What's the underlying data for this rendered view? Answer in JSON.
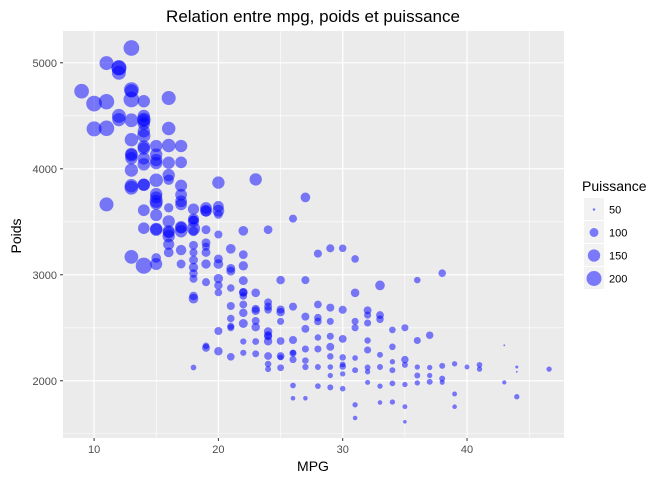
{
  "chart_data": {
    "type": "scatter",
    "title": "Relation entre mpg, poids et puissance",
    "xlabel": "MPG",
    "ylabel": "Poids",
    "xlim": [
      7.5,
      47.8
    ],
    "ylim": [
      1460,
      5300
    ],
    "x_ticks": [
      10,
      20,
      30,
      40
    ],
    "y_ticks": [
      2000,
      3000,
      4000,
      5000
    ],
    "grid": true,
    "point_color": "#0000FF",
    "point_opacity": 0.5,
    "panel_background": "#EBEBEB",
    "legend": {
      "title": "Puissance",
      "placement": "right",
      "entries": [
        {
          "label": "50",
          "value": 50
        },
        {
          "label": "100",
          "value": 100
        },
        {
          "label": "150",
          "value": 150
        },
        {
          "label": "200",
          "value": 200
        }
      ]
    },
    "points": [
      [
        9,
        4732,
        193
      ],
      [
        10,
        4615,
        215
      ],
      [
        10,
        4376,
        200
      ],
      [
        11,
        4997,
        180
      ],
      [
        11,
        4382,
        210
      ],
      [
        11,
        3664,
        180
      ],
      [
        11,
        4633,
        208
      ],
      [
        12,
        4955,
        198
      ],
      [
        12,
        4464,
        167
      ],
      [
        12,
        4951,
        198
      ],
      [
        12,
        4499,
        180
      ],
      [
        12,
        4906,
        180
      ],
      [
        13,
        3821,
        175
      ],
      [
        13,
        4100,
        150
      ],
      [
        13,
        4274,
        170
      ],
      [
        13,
        3169,
        175
      ],
      [
        13,
        5140,
        215
      ],
      [
        13,
        4735,
        165
      ],
      [
        13,
        4654,
        215
      ],
      [
        13,
        3840,
        170
      ],
      [
        13,
        4746,
        198
      ],
      [
        13,
        3988,
        165
      ],
      [
        13,
        4140,
        150
      ],
      [
        13,
        4457,
        175
      ],
      [
        13,
        4129,
        158
      ],
      [
        14,
        4354,
        150
      ],
      [
        14,
        3086,
        225
      ],
      [
        14,
        4209,
        153
      ],
      [
        14,
        4464,
        175
      ],
      [
        14,
        3850,
        150
      ],
      [
        14,
        4312,
        165
      ],
      [
        14,
        4425,
        150
      ],
      [
        14,
        4042,
        153
      ],
      [
        14,
        4098,
        150
      ],
      [
        14,
        3609,
        140
      ],
      [
        14,
        4456,
        150
      ],
      [
        14,
        3439,
        137
      ],
      [
        14,
        4638,
        150
      ],
      [
        14,
        4190,
        150
      ],
      [
        14,
        3850,
        148
      ],
      [
        14,
        4499,
        150
      ],
      [
        15,
        3693,
        165
      ],
      [
        15,
        3433,
        150
      ],
      [
        15,
        3761,
        150
      ],
      [
        15,
        4082,
        150
      ],
      [
        15,
        3892,
        170
      ],
      [
        15,
        4215,
        150
      ],
      [
        15,
        3730,
        145
      ],
      [
        15,
        3425,
        150
      ],
      [
        15,
        3563,
        145
      ],
      [
        15,
        3672,
        150
      ],
      [
        15,
        4135,
        150
      ],
      [
        15,
        3158,
        110
      ],
      [
        15,
        3102,
        145
      ],
      [
        15,
        4054,
        150
      ],
      [
        16,
        3504,
        150
      ],
      [
        16,
        4380,
        170
      ],
      [
        16,
        3410,
        150
      ],
      [
        16,
        3940,
        150
      ],
      [
        16,
        3399,
        140
      ],
      [
        16,
        4057,
        150
      ],
      [
        16,
        3365,
        150
      ],
      [
        16,
        3897,
        120
      ],
      [
        16,
        3288,
        130
      ],
      [
        16,
        4220,
        170
      ],
      [
        16,
        4668,
        180
      ],
      [
        16,
        3211,
        110
      ],
      [
        16,
        3632,
        105
      ],
      [
        17,
        3449,
        150
      ],
      [
        17,
        3693,
        140
      ],
      [
        17,
        3755,
        140
      ],
      [
        17,
        3445,
        130
      ],
      [
        17,
        4060,
        140
      ],
      [
        17,
        3410,
        150
      ],
      [
        17,
        3664,
        140
      ],
      [
        17,
        3102,
        100
      ],
      [
        17,
        3840,
        145
      ],
      [
        17,
        4215,
        150
      ],
      [
        17,
        3233,
        120
      ],
      [
        18,
        3504,
        130
      ],
      [
        18,
        3436,
        165
      ],
      [
        18,
        3012,
        95
      ],
      [
        18,
        2774,
        110
      ],
      [
        18,
        3139,
        100
      ],
      [
        18,
        3278,
        100
      ],
      [
        18,
        3070,
        105
      ],
      [
        18,
        2962,
        90
      ],
      [
        18,
        3210,
        90
      ],
      [
        18,
        3410,
        110
      ],
      [
        18,
        3620,
        130
      ],
      [
        18,
        2800,
        95
      ],
      [
        18,
        3520,
        100
      ],
      [
        18,
        3525,
        130
      ],
      [
        18,
        2125,
        68
      ],
      [
        19,
        3211,
        100
      ],
      [
        19,
        3302,
        100
      ],
      [
        19,
        3102,
        105
      ],
      [
        19,
        3265,
        90
      ],
      [
        19,
        3630,
        140
      ],
      [
        19,
        3425,
        100
      ],
      [
        19,
        2310,
        88
      ],
      [
        19,
        2930,
        90
      ],
      [
        19,
        3605,
        140
      ],
      [
        19,
        2330,
        75
      ],
      [
        19,
        3600,
        125
      ],
      [
        20,
        3150,
        100
      ],
      [
        20,
        3380,
        90
      ],
      [
        20,
        2965,
        105
      ],
      [
        20,
        3570,
        100
      ],
      [
        20,
        3102,
        110
      ],
      [
        20,
        2900,
        95
      ],
      [
        20,
        2833,
        85
      ],
      [
        20,
        2279,
        95
      ],
      [
        20,
        3605,
        140
      ],
      [
        20,
        3645,
        125
      ],
      [
        20,
        3870,
        150
      ],
      [
        20,
        2470,
        90
      ],
      [
        21,
        2587,
        85
      ],
      [
        21,
        3035,
        100
      ],
      [
        21,
        2875,
        85
      ],
      [
        21,
        2226,
        86
      ],
      [
        21,
        2705,
        90
      ],
      [
        21,
        3060,
        100
      ],
      [
        21,
        2500,
        80
      ],
      [
        21,
        3245,
        110
      ],
      [
        21,
        2515,
        80
      ],
      [
        22,
        2833,
        95
      ],
      [
        22,
        2264,
        72
      ],
      [
        22,
        3085,
        105
      ],
      [
        22,
        3415,
        110
      ],
      [
        22,
        2945,
        100
      ],
      [
        22,
        2540,
        100
      ],
      [
        22,
        2800,
        85
      ],
      [
        22,
        2835,
        95
      ],
      [
        22,
        2370,
        72
      ],
      [
        22,
        3190,
        98
      ],
      [
        22,
        2720,
        88
      ],
      [
        22,
        2640,
        95
      ],
      [
        23,
        2506,
        95
      ],
      [
        23,
        2254,
        78
      ],
      [
        23,
        2830,
        97
      ],
      [
        23,
        2370,
        78
      ],
      [
        23,
        2678,
        90
      ],
      [
        23,
        2660,
        95
      ],
      [
        23,
        3900,
        150
      ],
      [
        23,
        2565,
        88
      ],
      [
        24,
        2372,
        95
      ],
      [
        24,
        2430,
        90
      ],
      [
        24,
        2158,
        75
      ],
      [
        24,
        2420,
        90
      ],
      [
        24,
        2234,
        88
      ],
      [
        24,
        3425,
        98
      ],
      [
        24,
        2465,
        95
      ],
      [
        24,
        2700,
        90
      ],
      [
        24,
        2110,
        70
      ],
      [
        24,
        2670,
        86
      ],
      [
        24,
        2740,
        88
      ],
      [
        25,
        2375,
        88
      ],
      [
        25,
        2234,
        87
      ],
      [
        25,
        2648,
        95
      ],
      [
        25,
        2123,
        77
      ],
      [
        25,
        2672,
        90
      ],
      [
        25,
        2220,
        70
      ],
      [
        25,
        2950,
        95
      ],
      [
        25,
        2560,
        80
      ],
      [
        26,
        2200,
        80
      ],
      [
        26,
        1955,
        68
      ],
      [
        26,
        2265,
        70
      ],
      [
        26,
        3530,
        90
      ],
      [
        26,
        2385,
        90
      ],
      [
        26,
        1835,
        60
      ],
      [
        26,
        2700,
        90
      ],
      [
        26,
        2260,
        80
      ],
      [
        27,
        2130,
        72
      ],
      [
        27,
        2490,
        88
      ],
      [
        27,
        2300,
        80
      ],
      [
        27,
        2605,
        90
      ],
      [
        27,
        3730,
        110
      ],
      [
        27,
        2950,
        90
      ],
      [
        27,
        1835,
        60
      ],
      [
        27,
        2190,
        75
      ],
      [
        28,
        2560,
        85
      ],
      [
        28,
        2300,
        80
      ],
      [
        28,
        3200,
        90
      ],
      [
        28,
        2720,
        86
      ],
      [
        28,
        2130,
        70
      ],
      [
        28,
        1950,
        68
      ],
      [
        28,
        2595,
        85
      ],
      [
        28,
        2408,
        75
      ],
      [
        29,
        2050,
        65
      ],
      [
        29,
        2230,
        75
      ],
      [
        29,
        3250,
        90
      ],
      [
        29,
        2690,
        90
      ],
      [
        29,
        2130,
        67
      ],
      [
        29,
        2320,
        88
      ],
      [
        29,
        1937,
        70
      ],
      [
        29,
        2560,
        80
      ],
      [
        29,
        2420,
        80
      ],
      [
        30,
        2220,
        75
      ],
      [
        30,
        2155,
        68
      ],
      [
        30,
        3250,
        84
      ],
      [
        30,
        2670,
        90
      ],
      [
        30,
        1925,
        67
      ],
      [
        30,
        2395,
        88
      ],
      [
        30,
        2135,
        75
      ],
      [
        30,
        2065,
        65
      ],
      [
        31,
        1773,
        65
      ],
      [
        31,
        2215,
        68
      ],
      [
        31,
        1649,
        60
      ],
      [
        31,
        2560,
        80
      ],
      [
        31,
        2830,
        96
      ],
      [
        31,
        2500,
        80
      ],
      [
        31,
        2100,
        70
      ],
      [
        31,
        3150,
        85
      ],
      [
        32,
        1985,
        63
      ],
      [
        32,
        2290,
        80
      ],
      [
        32,
        2125,
        70
      ],
      [
        32,
        2085,
        65
      ],
      [
        32,
        2620,
        80
      ],
      [
        32,
        2380,
        74
      ],
      [
        32,
        2665,
        88
      ],
      [
        32,
        2545,
        80
      ],
      [
        33,
        1950,
        65
      ],
      [
        33,
        2900,
        110
      ],
      [
        33,
        2245,
        70
      ],
      [
        33,
        2580,
        84
      ],
      [
        33,
        1795,
        60
      ],
      [
        33,
        2130,
        70
      ],
      [
        33,
        2620,
        88
      ],
      [
        34,
        1800,
        65
      ],
      [
        34,
        2320,
        75
      ],
      [
        34,
        2100,
        70
      ],
      [
        34,
        2180,
        65
      ],
      [
        34,
        1975,
        68
      ],
      [
        34,
        2480,
        76
      ],
      [
        35,
        1965,
        65
      ],
      [
        35,
        2500,
        80
      ],
      [
        35,
        2150,
        70
      ],
      [
        35,
        2200,
        84
      ],
      [
        35,
        1755,
        62
      ],
      [
        35,
        1613,
        55
      ],
      [
        36,
        2130,
        65
      ],
      [
        36,
        2050,
        70
      ],
      [
        36,
        2380,
        80
      ],
      [
        36,
        2950,
        75
      ],
      [
        36,
        1980,
        65
      ],
      [
        37,
        2125,
        65
      ],
      [
        37,
        2430,
        84
      ],
      [
        37,
        1990,
        70
      ],
      [
        37,
        2050,
        65
      ],
      [
        38,
        2020,
        70
      ],
      [
        38,
        3015,
        85
      ],
      [
        38,
        2140,
        70
      ],
      [
        38,
        1985,
        63
      ],
      [
        39,
        2160,
        65
      ],
      [
        39,
        1875,
        62
      ],
      [
        39,
        1755,
        60
      ],
      [
        40,
        2130,
        62
      ],
      [
        41,
        2110,
        65
      ],
      [
        41,
        2150,
        68
      ],
      [
        43,
        1985,
        58
      ],
      [
        43,
        2335,
        48
      ],
      [
        44,
        2130,
        52
      ],
      [
        44,
        2085,
        48
      ],
      [
        44,
        1850,
        65
      ],
      [
        46.6,
        2110,
        65
      ]
    ]
  }
}
